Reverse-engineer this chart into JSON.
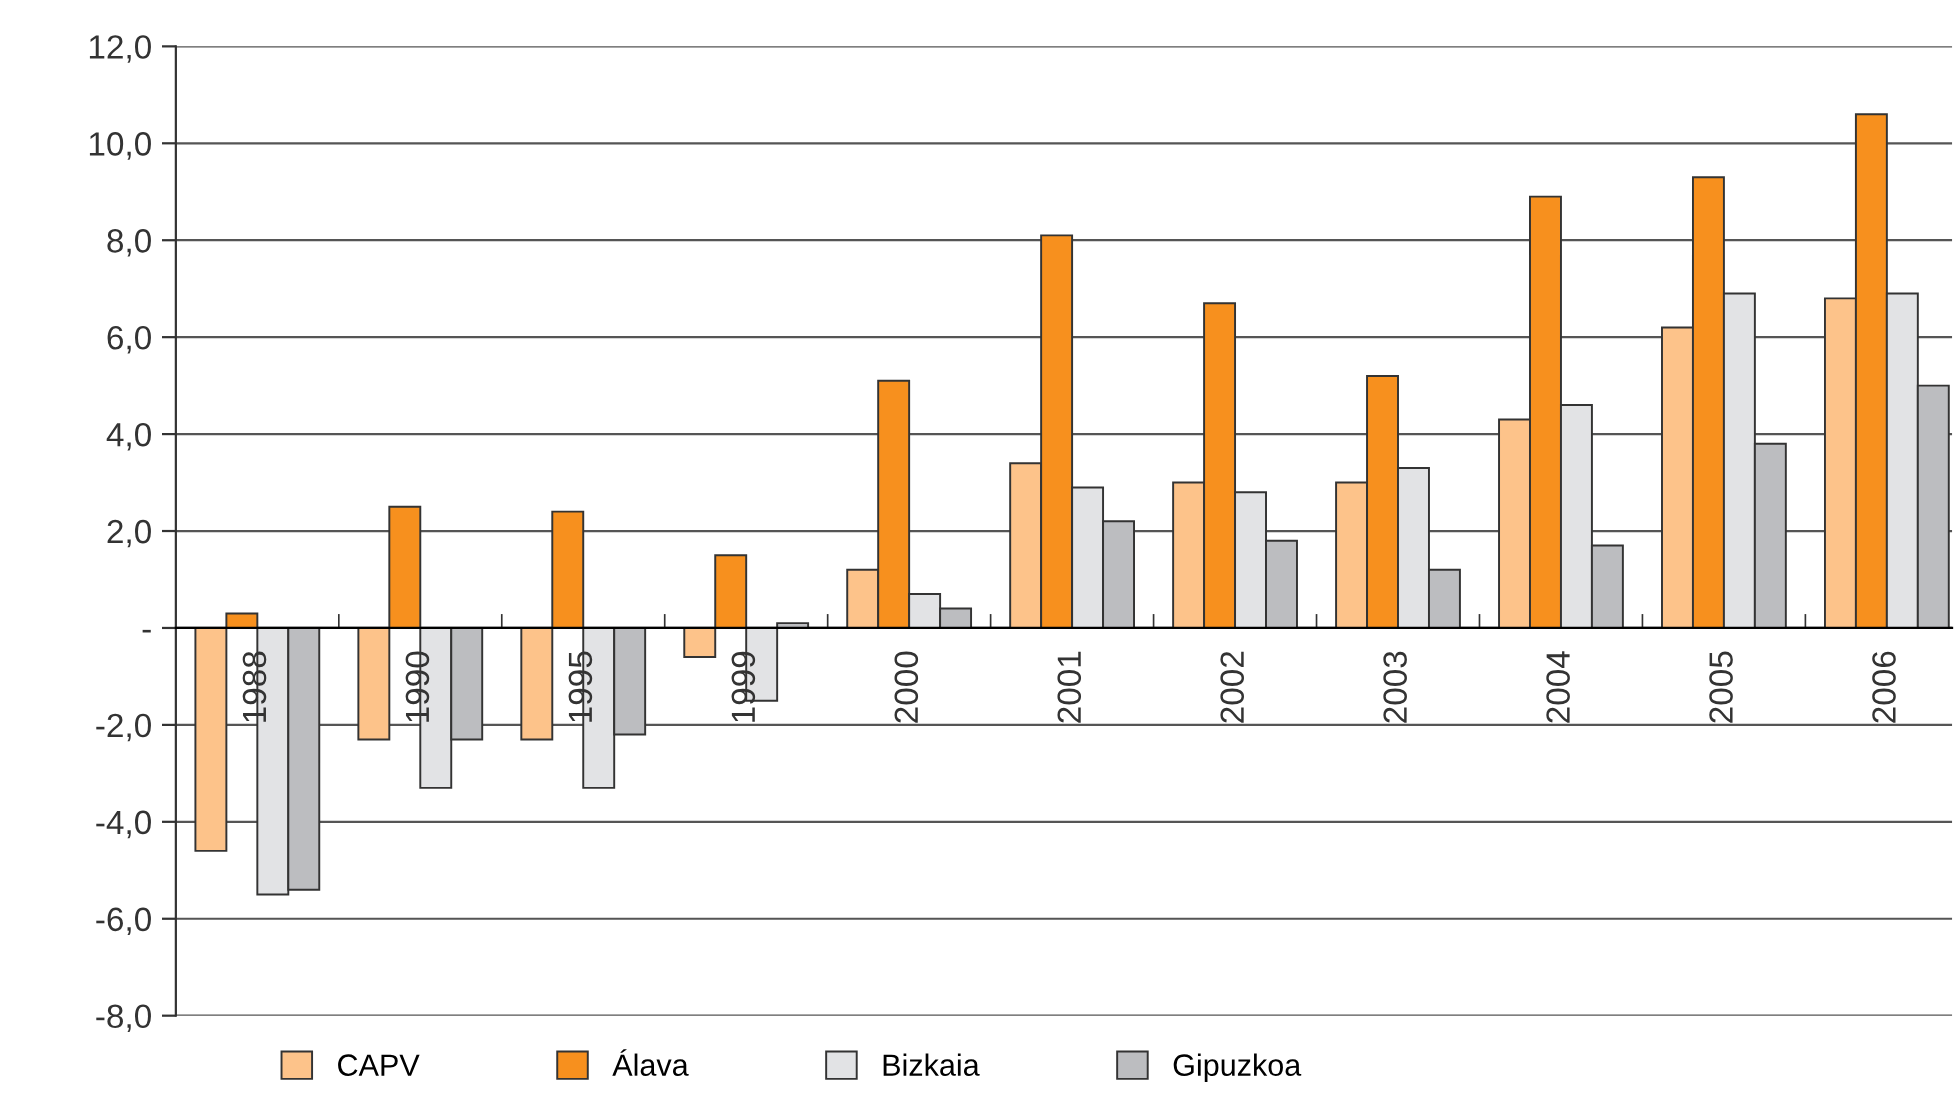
{
  "chart_data": {
    "type": "bar",
    "categories": [
      "1988",
      "1990",
      "1995",
      "1999",
      "2000",
      "2001",
      "2002",
      "2003",
      "2004",
      "2005",
      "2006"
    ],
    "series": [
      {
        "name": "CAPV",
        "color": "#fdc38a",
        "values": [
          -4.6,
          -2.3,
          -2.3,
          -0.6,
          1.2,
          3.4,
          3.0,
          3.0,
          4.3,
          6.2,
          6.8
        ]
      },
      {
        "name": "Álava",
        "color": "#f7901e",
        "values": [
          0.3,
          2.5,
          2.4,
          1.5,
          5.1,
          8.1,
          6.7,
          5.2,
          8.9,
          9.3,
          10.6
        ]
      },
      {
        "name": "Bizkaia",
        "color": "#e2e3e5",
        "values": [
          -5.5,
          -3.3,
          -3.3,
          -1.5,
          0.7,
          2.9,
          2.8,
          3.3,
          4.6,
          6.9,
          6.9
        ]
      },
      {
        "name": "Gipuzkoa",
        "color": "#bcbdc0",
        "values": [
          -5.4,
          -2.3,
          -2.2,
          0.1,
          0.4,
          2.2,
          1.8,
          1.2,
          1.7,
          3.8,
          5.0
        ]
      }
    ],
    "ylim": [
      -8,
      12
    ],
    "yticks": [
      {
        "value": -8,
        "label": "-8,0"
      },
      {
        "value": -6,
        "label": "-6,0"
      },
      {
        "value": -4,
        "label": "-4,0"
      },
      {
        "value": -2,
        "label": "-2,0"
      },
      {
        "value": 0,
        "label": "-"
      },
      {
        "value": 2,
        "label": "2,0"
      },
      {
        "value": 4,
        "label": "4,0"
      },
      {
        "value": 6,
        "label": "6,0"
      },
      {
        "value": 8,
        "label": "8,0"
      },
      {
        "value": 10,
        "label": "10,0"
      },
      {
        "value": 12,
        "label": "12,0"
      }
    ],
    "grid": "y",
    "legend": "bottom"
  }
}
